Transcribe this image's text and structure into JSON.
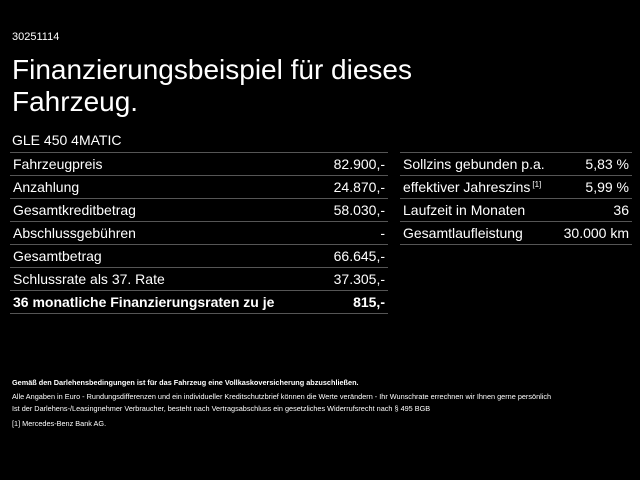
{
  "code": "30251114",
  "title_lines": [
    "Finanzierungsbeispiel für dieses",
    "Fahrzeug."
  ],
  "model": "GLE 450 4MATIC",
  "left_table": {
    "rows": [
      {
        "label": "Fahrzeugpreis",
        "value": "82.900,-"
      },
      {
        "label": "Anzahlung",
        "value": "24.870,-"
      },
      {
        "label": "Gesamtkreditbetrag",
        "value": "58.030,-"
      },
      {
        "label": "Abschlussgebühren",
        "value": "-"
      },
      {
        "label": "Gesamtbetrag",
        "value": "66.645,-"
      },
      {
        "label": "Schlussrate als 37. Rate",
        "value": "37.305,-"
      },
      {
        "label": "36 monatliche Finanzierungsraten zu je",
        "value": "815,-"
      }
    ]
  },
  "right_table": {
    "rows": [
      {
        "label": "Sollzins gebunden p.a.",
        "value": "5,83 %"
      },
      {
        "label": "effektiver Jahreszins",
        "sup": "[1]",
        "value": "5,99 %"
      },
      {
        "label": "Laufzeit in Monaten",
        "value": "36"
      },
      {
        "label": "Gesamtlaufleistung",
        "value": "30.000 km"
      }
    ]
  },
  "footnotes": {
    "insurance": "Gemäß den Darlehensbedingungen ist für das Fahrzeug eine Vollkaskoversicherung abzuschließen.",
    "lines": [
      "Alle Angaben in Euro - Rundungsdifferenzen und ein individueller Kreditschutzbrief können die Werte verändern - Ihr Wunschrate errechnen wir Ihnen gerne persönlich",
      "Ist der Darlehens-/Leasingnehmer Verbraucher, besteht nach Vertragsabschluss ein gesetzliches Widerrufsrecht nach § 495 BGB"
    ],
    "marker": "[1]",
    "bank": "Mercedes-Benz Bank AG."
  }
}
